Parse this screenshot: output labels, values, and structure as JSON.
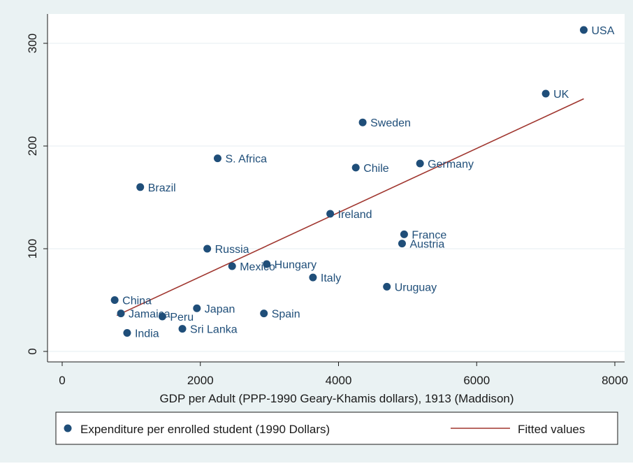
{
  "chart_data": {
    "type": "scatter",
    "xlabel": "GDP per Adult (PPP-1990 Geary-Khamis dollars), 1913 (Maddison)",
    "ylabel": "",
    "xlim": [
      0,
      8000
    ],
    "ylim": [
      0,
      320
    ],
    "x_ticks": [
      0,
      2000,
      4000,
      6000,
      8000
    ],
    "y_ticks": [
      0,
      100,
      200,
      300
    ],
    "x_tick_labels": [
      "0",
      "2000",
      "4000",
      "6000",
      "8000"
    ],
    "y_tick_labels": [
      "0",
      "100",
      "200",
      "300"
    ],
    "grid": "horizontal",
    "legend_placement": "bottom",
    "colors": {
      "background": "#eaf2f3",
      "plot_background": "#ffffff",
      "points": "#1f4e79",
      "fit_line": "#a0362f",
      "grid": "#e6eef0",
      "text": "#1f4e79"
    },
    "series": [
      {
        "name": "Expenditure per enrolled student (1990 Dollars)",
        "kind": "scatter",
        "points": [
          {
            "label": "USA",
            "x": 7550,
            "y": 313
          },
          {
            "label": "UK",
            "x": 7000,
            "y": 251
          },
          {
            "label": "Sweden",
            "x": 4350,
            "y": 223
          },
          {
            "label": "Germany",
            "x": 5180,
            "y": 183
          },
          {
            "label": "Chile",
            "x": 4250,
            "y": 179
          },
          {
            "label": "S. Africa",
            "x": 2250,
            "y": 188
          },
          {
            "label": "Brazil",
            "x": 1130,
            "y": 160
          },
          {
            "label": "Ireland",
            "x": 3880,
            "y": 134
          },
          {
            "label": "France",
            "x": 4950,
            "y": 114
          },
          {
            "label": "Austria",
            "x": 4920,
            "y": 105
          },
          {
            "label": "Russia",
            "x": 2100,
            "y": 100
          },
          {
            "label": "Mexico",
            "x": 2460,
            "y": 83
          },
          {
            "label": "Hungary",
            "x": 2960,
            "y": 85
          },
          {
            "label": "Italy",
            "x": 3630,
            "y": 72
          },
          {
            "label": "Uruguay",
            "x": 4700,
            "y": 63
          },
          {
            "label": "China",
            "x": 760,
            "y": 50
          },
          {
            "label": "Japan",
            "x": 1950,
            "y": 42
          },
          {
            "label": "Jamaica",
            "x": 850,
            "y": 37
          },
          {
            "label": "Peru",
            "x": 1450,
            "y": 34
          },
          {
            "label": "Spain",
            "x": 2920,
            "y": 37
          },
          {
            "label": "Sri Lanka",
            "x": 1740,
            "y": 22
          },
          {
            "label": "India",
            "x": 940,
            "y": 18
          }
        ]
      },
      {
        "name": "Fitted values",
        "kind": "line",
        "points": [
          {
            "x": 790,
            "y": 35
          },
          {
            "x": 7550,
            "y": 246
          }
        ]
      }
    ]
  }
}
